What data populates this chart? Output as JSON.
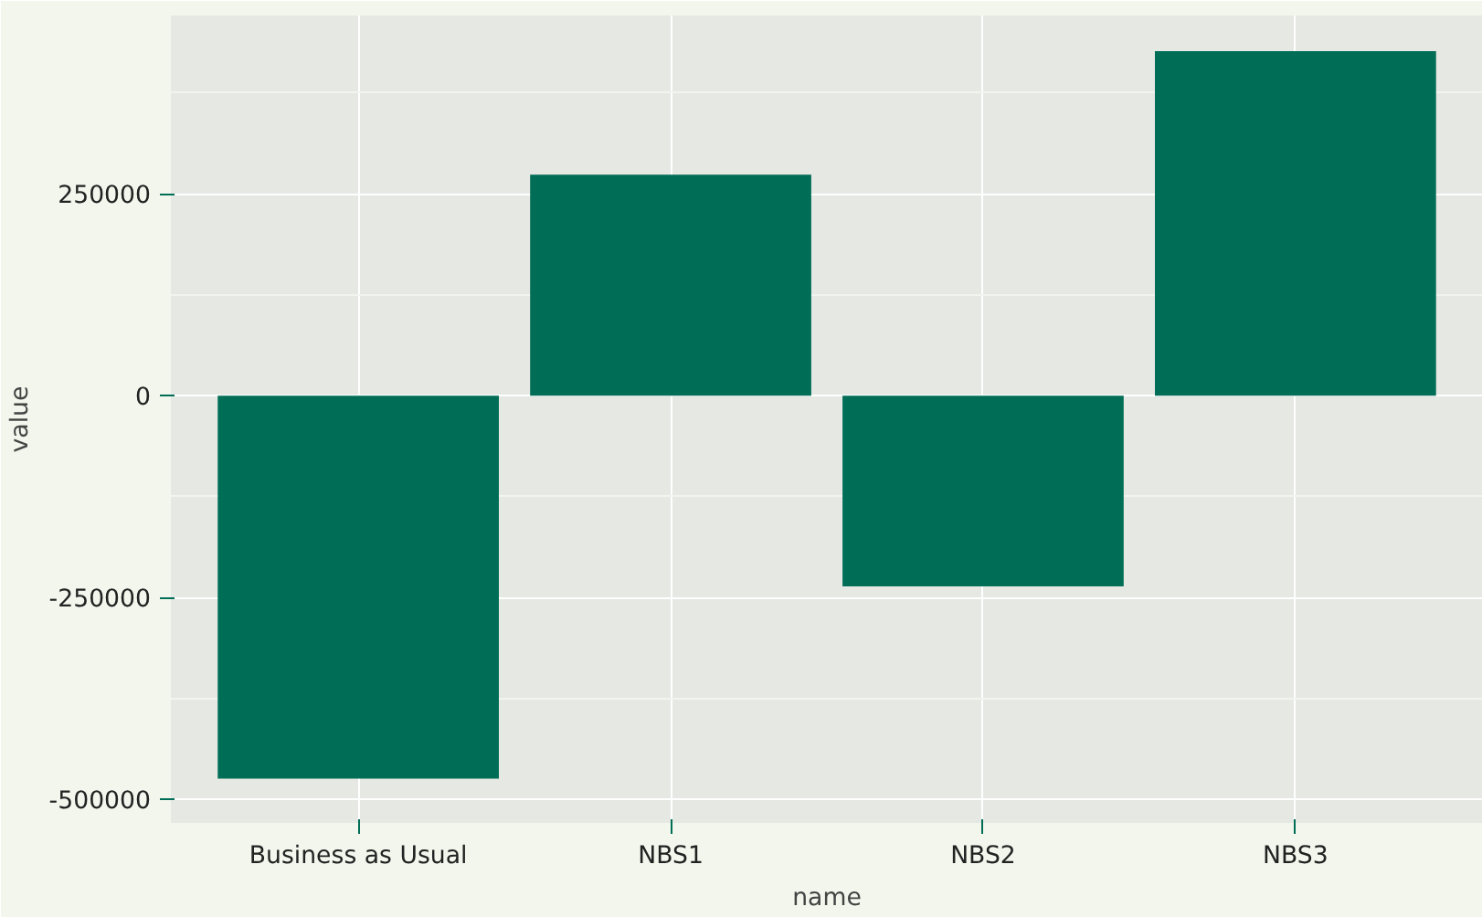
{
  "chart_data": {
    "type": "bar",
    "xlabel": "name",
    "ylabel": "value",
    "categories": [
      "Business as Usual",
      "NBS1",
      "NBS2",
      "NBS3"
    ],
    "values": [
      -474000,
      274000,
      -236000,
      427000
    ],
    "color": "#006e57",
    "ylim": [
      -529000,
      471000
    ],
    "yticks": [
      -500000,
      -250000,
      0,
      250000
    ],
    "grid": true
  }
}
